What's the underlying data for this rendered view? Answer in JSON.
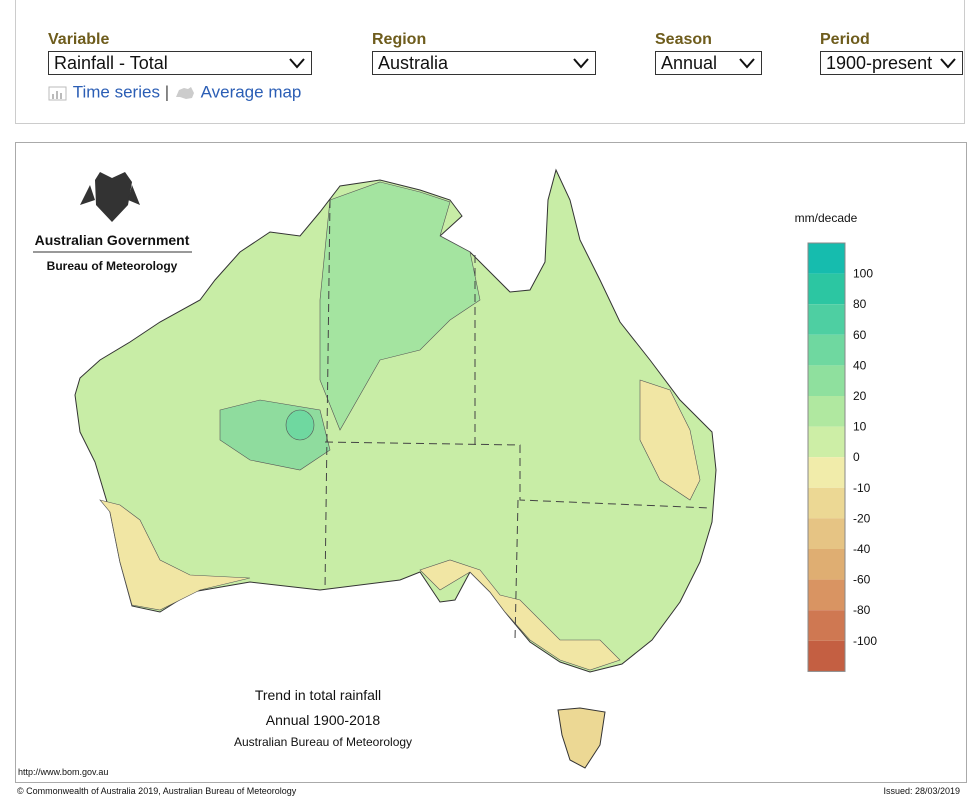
{
  "controls": [
    {
      "label": "Variable",
      "value": "Rainfall - Total"
    },
    {
      "label": "Region",
      "value": "Australia"
    },
    {
      "label": "Season",
      "value": "Annual"
    },
    {
      "label": "Period",
      "value": "1900-present"
    }
  ],
  "links": [
    "Time series",
    "Average map"
  ],
  "separator": "|",
  "map": {
    "logo": {
      "line1": "Australian Government",
      "line2": "Bureau of Meteorology"
    },
    "title": "Trend in total rainfall",
    "subtitle": "Annual 1900-2018",
    "credit": "Australian Bureau of Meteorology",
    "url": "http://www.bom.gov.au",
    "legend": {
      "title": "mm/decade",
      "labels": [
        100,
        80,
        60,
        40,
        20,
        10,
        0,
        -10,
        -20,
        -40,
        -60,
        -80,
        -100
      ],
      "colors": [
        "#16bcae",
        "#2cc6a2",
        "#4ecfa2",
        "#6fd8a0",
        "#8fe09e",
        "#b0e8a0",
        "#cdeea6",
        "#f1ecaa",
        "#ecd894",
        "#e6c484",
        "#dfae72",
        "#d99462",
        "#cf7852",
        "#c45f42"
      ]
    }
  },
  "footer": {
    "copyright": "© Commonwealth of Australia 2019, Australian Bureau of Meteorology",
    "issued": "Issued: 28/03/2019"
  }
}
